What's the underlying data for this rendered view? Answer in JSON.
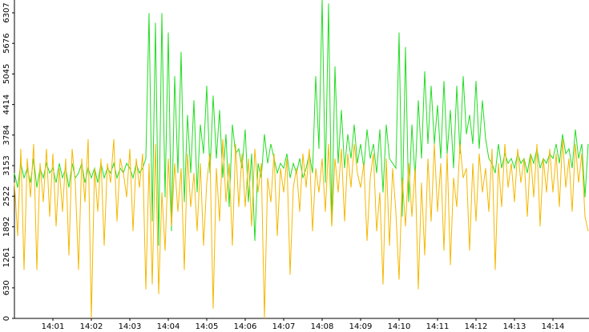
{
  "chart_data": {
    "type": "line",
    "categories": [
      null,
      null,
      null,
      null,
      null,
      null,
      null,
      null,
      null,
      null,
      null,
      null,
      "14:01",
      null,
      null,
      null,
      null,
      null,
      null,
      null,
      null,
      null,
      null,
      null,
      "14:02",
      null,
      null,
      null,
      null,
      null,
      null,
      null,
      null,
      null,
      null,
      null,
      "14:03",
      null,
      null,
      null,
      null,
      null,
      null,
      null,
      null,
      null,
      null,
      null,
      "14:04",
      null,
      null,
      null,
      null,
      null,
      null,
      null,
      null,
      null,
      null,
      null,
      "14:05",
      null,
      null,
      null,
      null,
      null,
      null,
      null,
      null,
      null,
      null,
      null,
      "14:06",
      null,
      null,
      null,
      null,
      null,
      null,
      null,
      null,
      null,
      null,
      null,
      "14:07",
      null,
      null,
      null,
      null,
      null,
      null,
      null,
      null,
      null,
      null,
      null,
      "14:08",
      null,
      null,
      null,
      null,
      null,
      null,
      null,
      null,
      null,
      null,
      null,
      "14:09",
      null,
      null,
      null,
      null,
      null,
      null,
      null,
      null,
      null,
      null,
      null,
      "14:10",
      null,
      null,
      null,
      null,
      null,
      null,
      null,
      null,
      null,
      null,
      null,
      "14:11",
      null,
      null,
      null,
      null,
      null,
      null,
      null,
      null,
      null,
      null,
      null,
      "14:12",
      null,
      null,
      null,
      null,
      null,
      null,
      null,
      null,
      null,
      null,
      null,
      "14:13",
      null,
      null,
      null,
      null,
      null,
      null,
      null,
      null,
      null,
      null,
      null,
      "14:14",
      null,
      null,
      null,
      null,
      null,
      null,
      null,
      null,
      null,
      null,
      null
    ],
    "series": [
      {
        "color": "#22dd22",
        "values": [
          3000,
          2700,
          3200,
          2900,
          3100,
          2800,
          3300,
          2700,
          3100,
          2900,
          3200,
          3000,
          3100,
          2800,
          3200,
          2900,
          3100,
          2700,
          3200,
          2900,
          3000,
          3200,
          2800,
          3100,
          2900,
          3100,
          2800,
          3200,
          2900,
          3100,
          3000,
          3200,
          2900,
          3100,
          3000,
          3200,
          3100,
          2900,
          3200,
          3000,
          3100,
          3300,
          6300,
          2000,
          6100,
          1500,
          6300,
          2500,
          5900,
          1800,
          5000,
          3000,
          5500,
          2400,
          4200,
          3000,
          4500,
          2600,
          4000,
          3400,
          4800,
          3000,
          4600,
          3300,
          4300,
          2900,
          3800,
          2300,
          4000,
          3400,
          3500,
          3100,
          3900,
          2400,
          3400,
          1600,
          3200,
          2900,
          3800,
          3200,
          3600,
          3300,
          3000,
          3200,
          3100,
          3400,
          2900,
          3200,
          3000,
          3300,
          2900,
          3100,
          3400,
          3000,
          5000,
          3500,
          6600,
          2800,
          6500,
          1900,
          5200,
          3200,
          4300,
          3100,
          3800,
          3300,
          4000,
          3200,
          3600,
          3100,
          3900,
          3300,
          3600,
          3000,
          3900,
          2600,
          4000,
          3300,
          3200,
          3100,
          5900,
          2100,
          5600,
          2400,
          4000,
          2900,
          4500,
          3300,
          5100,
          3600,
          4800,
          3600,
          4400,
          3300,
          4900,
          3400,
          4300,
          3100,
          4800,
          3400,
          5000,
          3800,
          4200,
          3600,
          4900,
          3500,
          4500,
          3700,
          3300,
          3200,
          3000,
          3600,
          3100,
          3400,
          3200,
          3300,
          3100,
          3400,
          3200,
          3300,
          3000,
          3400,
          3200,
          3500,
          3100,
          3300,
          3200,
          3400,
          3300,
          3600,
          3200,
          3800,
          3400,
          3500,
          3100,
          3900,
          3300,
          3600,
          2500,
          3600
        ]
      },
      {
        "color": "#f5b800",
        "values": [
          2800,
          1700,
          3500,
          1000,
          3300,
          2500,
          3600,
          1000,
          3200,
          2400,
          3500,
          2100,
          3400,
          1900,
          3100,
          2200,
          3300,
          1300,
          3500,
          2800,
          1000,
          3300,
          2400,
          3700,
          0,
          3100,
          2200,
          3300,
          1500,
          3200,
          2800,
          3700,
          2000,
          3300,
          3000,
          2500,
          3500,
          1800,
          3300,
          2700,
          3400,
          600,
          3200,
          700,
          3600,
          500,
          2600,
          1400,
          3300,
          1900,
          3200,
          2200,
          3100,
          1000,
          3400,
          2300,
          3000,
          1800,
          3200,
          1500,
          2800,
          3400,
          200,
          3100,
          2000,
          3700,
          2400,
          3200,
          1500,
          3600,
          2300,
          3400,
          2300,
          3300,
          1900,
          3500,
          2600,
          3200,
          0,
          2900,
          2400,
          3400,
          1700,
          3100,
          2600,
          3300,
          900,
          2700,
          3100,
          2200,
          3400,
          2700,
          3500,
          1800,
          3100,
          2600,
          3300,
          2200,
          3600,
          1900,
          3300,
          2600,
          3500,
          2000,
          3400,
          2700,
          3600,
          3000,
          2700,
          3200,
          1600,
          2900,
          3400,
          1800,
          2600,
          700,
          3300,
          1500,
          3100,
          2200,
          800,
          2900,
          1900,
          3200,
          2100,
          3100,
          600,
          2800,
          1300,
          3300,
          2000,
          3600,
          2200,
          3200,
          1400,
          3400,
          1100,
          2900,
          2300,
          3600,
          2900,
          3100,
          1400,
          3200,
          2000,
          3400,
          2600,
          3100,
          2200,
          3500,
          1000,
          3200,
          2300,
          3600,
          2700,
          3200,
          2400,
          3500,
          2800,
          3300,
          2100,
          3400,
          2500,
          3600,
          1900,
          3300,
          2600,
          3500,
          2600,
          3400,
          2300,
          3700,
          2700,
          3300,
          2200,
          3600,
          2800,
          3400,
          2100,
          1800
        ]
      }
    ],
    "ylim": [
      0,
      6571
    ],
    "yticks": [
      0,
      630,
      1261,
      1892,
      2522,
      3153,
      3784,
      4414,
      5045,
      5676,
      6307
    ]
  }
}
